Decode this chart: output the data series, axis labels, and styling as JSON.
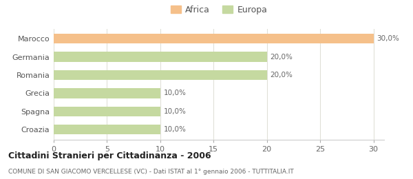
{
  "categories": [
    "Croazia",
    "Spagna",
    "Grecia",
    "Romania",
    "Germania",
    "Marocco"
  ],
  "values": [
    10,
    10,
    10,
    20,
    20,
    30
  ],
  "colors": [
    "#c5d9a0",
    "#c5d9a0",
    "#c5d9a0",
    "#c5d9a0",
    "#c5d9a0",
    "#f5c08a"
  ],
  "labels": [
    "10,0%",
    "10,0%",
    "10,0%",
    "20,0%",
    "20,0%",
    "30,0%"
  ],
  "legend": [
    {
      "label": "Africa",
      "color": "#f5c08a"
    },
    {
      "label": "Europa",
      "color": "#c5d9a0"
    }
  ],
  "xlim": [
    0,
    30
  ],
  "xticks": [
    0,
    5,
    10,
    15,
    20,
    25,
    30
  ],
  "title": "Cittadini Stranieri per Cittadinanza - 2006",
  "subtitle": "COMUNE DI SAN GIACOMO VERCELLESE (VC) - Dati ISTAT al 1° gennaio 2006 - TUTTITALIA.IT",
  "bg_color": "#ffffff",
  "grid_color": "#e0e0d8"
}
